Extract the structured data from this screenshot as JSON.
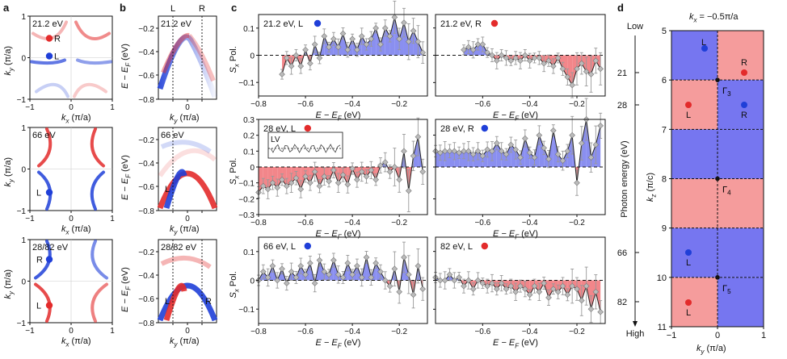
{
  "panel_letters": {
    "a": "a",
    "b": "b",
    "c": "c",
    "d": "d"
  },
  "colors": {
    "red": "#e32b2b",
    "blue": "#1f3fd8",
    "pos_fill": "#8a8ff0",
    "neg_fill": "#f2868a",
    "d_red": "#f59c9c",
    "d_blue": "#7676f0",
    "grey": "#999999"
  },
  "panel_a": {
    "energies": [
      "21.2 eV",
      "66 eV",
      "28/82 eV"
    ],
    "xlabel": "k",
    "xlabel_sub": "x",
    "xunit": "(π/a)",
    "ylabel": "k",
    "ylabel_sub": "y",
    "yunit": "(π/a)",
    "ticks": [
      "−1",
      "0",
      "1"
    ],
    "row1_labels": [
      "R",
      "L"
    ],
    "row2_labels": [
      "L"
    ],
    "row3_labels": [
      "R",
      "L"
    ]
  },
  "panel_b": {
    "energies": [
      "21.2 eV",
      "66 eV",
      "28/82 eV"
    ],
    "ylabel": "E − E",
    "ylabel_sub": "F",
    "yunit": "(eV)",
    "xlabel": "k",
    "xlabel_sub": "y",
    "xunit": "(π/a)",
    "yticks": [
      "−0.2",
      "−0.4",
      "−0.6",
      "−0.8"
    ],
    "xticks": [
      "−0.5",
      "0",
      "0.5"
    ],
    "top_labels": [
      "L",
      "R"
    ],
    "row2_labels": [
      "L"
    ],
    "row3_labels": [
      "L",
      "R"
    ]
  },
  "panel_c": {
    "ylabel": "S",
    "ylabel_sub": "x",
    "ylabel_rest": " Pol.",
    "xlabel": "E − E",
    "xlabel_sub": "F",
    "xunit": " (eV)",
    "inset_label": "LV",
    "yticks_small": [
      "0.1",
      "0",
      "−0.1"
    ],
    "yticks_mid": [
      "0.3",
      "0.2",
      "0.1",
      "0",
      "−0.1",
      "−0.2",
      "−0.3"
    ],
    "xticks_left": [
      "−0.8",
      "−0.6",
      "−0.4",
      "−0.2"
    ],
    "xticks_right": [
      "−0.6",
      "−0.4",
      "−0.2"
    ],
    "subplots": [
      {
        "title": "21.2 eV, L",
        "dot": "blue"
      },
      {
        "title": "21.2 eV, R",
        "dot": "red"
      },
      {
        "title": "28 eV, L",
        "dot": "red"
      },
      {
        "title": "28 eV, R",
        "dot": "blue"
      },
      {
        "title": "66 eV, L",
        "dot": "blue"
      },
      {
        "title": "82 eV, L",
        "dot": "red"
      }
    ]
  },
  "panel_d": {
    "title": "k",
    "title_sub": "x",
    "title_rest": " = −0.5π/a",
    "low": "Low",
    "high": "High",
    "axis_label": "Photon energy (eV)",
    "photon_ticks": [
      "21",
      "28",
      "66",
      "82"
    ],
    "kz_ticks": [
      "5",
      "6",
      "7",
      "8",
      "9",
      "10",
      "11"
    ],
    "kz_label": "k",
    "kz_sub": "z",
    "kz_unit": " (π/c)",
    "xlabel": "k",
    "xlabel_sub": "y",
    "xunit": " (π/a)",
    "xticks": [
      "−1",
      "0",
      "1"
    ],
    "gammas": [
      "Γ",
      "Γ",
      "Γ"
    ],
    "gamma_subs": [
      "3",
      "4",
      "5"
    ],
    "band_labels": {
      "r1_left": "L",
      "r1_right": "R",
      "r2_left": "L",
      "r2_right": "R",
      "r5_left": "L",
      "r6_left": "L"
    }
  },
  "chart_data": [
    {
      "type": "line",
      "title": "21.2 eV, L",
      "xlabel": "E − EF (eV)",
      "ylabel": "Sx Pol.",
      "xlim": [
        -0.8,
        -0.08
      ],
      "ylim": [
        -0.15,
        0.15
      ],
      "x": [
        -0.7,
        -0.68,
        -0.66,
        -0.64,
        -0.62,
        -0.6,
        -0.58,
        -0.56,
        -0.54,
        -0.52,
        -0.5,
        -0.48,
        -0.46,
        -0.44,
        -0.42,
        -0.4,
        -0.38,
        -0.36,
        -0.34,
        -0.32,
        -0.3,
        -0.28,
        -0.26,
        -0.24,
        -0.22,
        -0.2,
        -0.18,
        -0.16,
        -0.14,
        -0.12,
        -0.1
      ],
      "y": [
        -0.07,
        -0.01,
        -0.04,
        0.0,
        -0.04,
        0.02,
        -0.03,
        0.04,
        -0.01,
        0.07,
        0.03,
        0.06,
        0.03,
        0.08,
        0.02,
        0.06,
        0.02,
        0.07,
        0.04,
        0.06,
        0.1,
        0.04,
        0.1,
        0.07,
        0.14,
        0.06,
        0.12,
        0.05,
        0.09,
        0.05,
        0.01
      ]
    },
    {
      "type": "line",
      "title": "21.2 eV, R",
      "xlabel": "E − EF (eV)",
      "ylabel": "Sx Pol.",
      "xlim": [
        -0.8,
        -0.08
      ],
      "ylim": [
        -0.15,
        0.15
      ],
      "x": [
        -0.68,
        -0.66,
        -0.64,
        -0.62,
        -0.6,
        -0.58,
        -0.56,
        -0.54,
        -0.52,
        -0.5,
        -0.48,
        -0.46,
        -0.44,
        -0.42,
        -0.4,
        -0.38,
        -0.36,
        -0.34,
        -0.32,
        -0.3,
        -0.28,
        -0.26,
        -0.24,
        -0.22,
        -0.2,
        -0.18,
        -0.16,
        -0.14,
        -0.12,
        -0.1
      ],
      "y": [
        0.02,
        0.03,
        0.02,
        0.04,
        0.04,
        0.01,
        0.0,
        -0.02,
        0.0,
        -0.01,
        -0.02,
        -0.01,
        -0.02,
        0.0,
        -0.02,
        -0.01,
        -0.01,
        -0.03,
        -0.02,
        -0.04,
        -0.01,
        -0.05,
        -0.08,
        -0.11,
        -0.05,
        -0.03,
        -0.06,
        -0.07,
        -0.02,
        -0.05
      ]
    },
    {
      "type": "line",
      "title": "28 eV, L",
      "xlabel": "E − EF (eV)",
      "ylabel": "Sx Pol.",
      "xlim": [
        -0.8,
        -0.08
      ],
      "ylim": [
        -0.3,
        0.3
      ],
      "x": [
        -0.8,
        -0.78,
        -0.76,
        -0.74,
        -0.72,
        -0.7,
        -0.68,
        -0.66,
        -0.64,
        -0.62,
        -0.6,
        -0.58,
        -0.56,
        -0.54,
        -0.52,
        -0.5,
        -0.48,
        -0.46,
        -0.44,
        -0.42,
        -0.4,
        -0.38,
        -0.36,
        -0.34,
        -0.32,
        -0.3,
        -0.28,
        -0.26,
        -0.24,
        -0.22,
        -0.2,
        -0.18,
        -0.16,
        -0.14,
        -0.12,
        -0.1
      ],
      "y": [
        -0.16,
        -0.12,
        -0.14,
        -0.1,
        -0.13,
        -0.08,
        -0.12,
        -0.1,
        -0.07,
        -0.14,
        -0.06,
        -0.1,
        -0.03,
        -0.12,
        -0.06,
        -0.09,
        -0.02,
        -0.1,
        -0.05,
        -0.11,
        -0.01,
        -0.08,
        -0.03,
        -0.06,
        -0.02,
        -0.08,
        0.01,
        0.03,
        -0.03,
        0.0,
        -0.08,
        0.1,
        -0.15,
        0.07,
        0.19,
        -0.03
      ]
    },
    {
      "type": "line",
      "title": "28 eV, R",
      "xlabel": "E − EF (eV)",
      "ylabel": "Sx Pol.",
      "xlim": [
        -0.8,
        -0.08
      ],
      "ylim": [
        -0.3,
        0.3
      ],
      "x": [
        -0.8,
        -0.78,
        -0.76,
        -0.74,
        -0.72,
        -0.7,
        -0.68,
        -0.66,
        -0.64,
        -0.62,
        -0.6,
        -0.58,
        -0.56,
        -0.54,
        -0.52,
        -0.5,
        -0.48,
        -0.46,
        -0.44,
        -0.42,
        -0.4,
        -0.38,
        -0.36,
        -0.34,
        -0.32,
        -0.3,
        -0.28,
        -0.26,
        -0.24,
        -0.22,
        -0.2,
        -0.18,
        -0.16,
        -0.14,
        -0.12,
        -0.1
      ],
      "y": [
        0.1,
        0.09,
        0.1,
        0.1,
        0.1,
        0.09,
        0.1,
        0.1,
        0.08,
        0.1,
        0.07,
        0.11,
        0.1,
        0.15,
        0.1,
        0.08,
        0.14,
        0.11,
        0.06,
        0.18,
        0.09,
        0.06,
        0.2,
        0.12,
        0.05,
        0.23,
        0.08,
        0.04,
        0.1,
        0.2,
        -0.1,
        0.15,
        0.3,
        0.06,
        0.14,
        0.26
      ]
    },
    {
      "type": "line",
      "title": "66 eV, L",
      "xlabel": "E − EF (eV)",
      "ylabel": "Sx Pol.",
      "xlim": [
        -0.8,
        -0.08
      ],
      "ylim": [
        -0.15,
        0.15
      ],
      "x": [
        -0.8,
        -0.78,
        -0.76,
        -0.74,
        -0.72,
        -0.7,
        -0.68,
        -0.66,
        -0.64,
        -0.62,
        -0.6,
        -0.58,
        -0.56,
        -0.54,
        -0.52,
        -0.5,
        -0.48,
        -0.46,
        -0.44,
        -0.42,
        -0.4,
        -0.38,
        -0.36,
        -0.34,
        -0.32,
        -0.3,
        -0.28,
        -0.26,
        -0.24,
        -0.22,
        -0.2,
        -0.18,
        -0.16,
        -0.14,
        -0.12,
        -0.1
      ],
      "y": [
        0.0,
        0.03,
        0.01,
        0.05,
        0.0,
        0.04,
        -0.01,
        0.03,
        0.01,
        0.05,
        0.02,
        0.06,
        -0.01,
        0.07,
        0.03,
        0.02,
        0.07,
        0.02,
        0.01,
        0.06,
        0.02,
        0.05,
        0.01,
        0.08,
        0.01,
        0.06,
        0.03,
        0.0,
        -0.02,
        0.04,
        -0.04,
        0.08,
        0.02,
        -0.05,
        0.05,
        -0.03
      ]
    },
    {
      "type": "line",
      "title": "82 eV, L",
      "xlabel": "E − EF (eV)",
      "ylabel": "Sx Pol.",
      "xlim": [
        -0.8,
        -0.08
      ],
      "ylim": [
        -0.15,
        0.15
      ],
      "x": [
        -0.8,
        -0.78,
        -0.76,
        -0.74,
        -0.72,
        -0.7,
        -0.68,
        -0.66,
        -0.64,
        -0.62,
        -0.6,
        -0.58,
        -0.56,
        -0.54,
        -0.52,
        -0.5,
        -0.48,
        -0.46,
        -0.44,
        -0.42,
        -0.4,
        -0.38,
        -0.36,
        -0.34,
        -0.32,
        -0.3,
        -0.28,
        -0.26,
        -0.24,
        -0.22,
        -0.2,
        -0.18,
        -0.16,
        -0.14,
        -0.12,
        -0.1
      ],
      "y": [
        0.01,
        0.0,
        0.0,
        0.02,
        0.0,
        0.01,
        -0.02,
        0.0,
        -0.03,
        0.0,
        -0.01,
        -0.02,
        -0.01,
        -0.03,
        -0.01,
        -0.03,
        -0.02,
        -0.04,
        -0.02,
        -0.03,
        -0.05,
        -0.02,
        -0.04,
        -0.01,
        -0.06,
        -0.03,
        -0.04,
        -0.02,
        -0.05,
        -0.02,
        -0.03,
        -0.07,
        -0.02,
        -0.1,
        -0.04,
        -0.11
      ]
    }
  ]
}
